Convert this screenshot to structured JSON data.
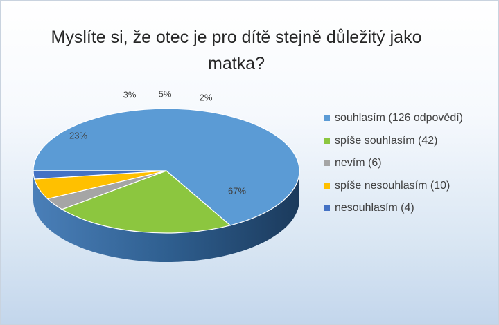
{
  "chart_data": {
    "type": "pie",
    "title": "Myslíte si, že otec je pro dítě stejně důležitý jako matka?",
    "legend_position": "right",
    "three_d": true,
    "slices": [
      {
        "label": "souhlasím (126 odpovědí)",
        "value": 126,
        "percent_label": "67%",
        "color": "#5b9bd5"
      },
      {
        "label": "spíše souhlasím (42)",
        "value": 42,
        "percent_label": "23%",
        "color": "#8cc63f"
      },
      {
        "label": "nevím (6)",
        "value": 6,
        "percent_label": "3%",
        "color": "#a5a5a5"
      },
      {
        "label": "spíše nesouhlasím (10)",
        "value": 10,
        "percent_label": "5%",
        "color": "#ffc000"
      },
      {
        "label": "nesouhlasím (4)",
        "value": 4,
        "percent_label": "2%",
        "color": "#4472c4"
      }
    ]
  }
}
